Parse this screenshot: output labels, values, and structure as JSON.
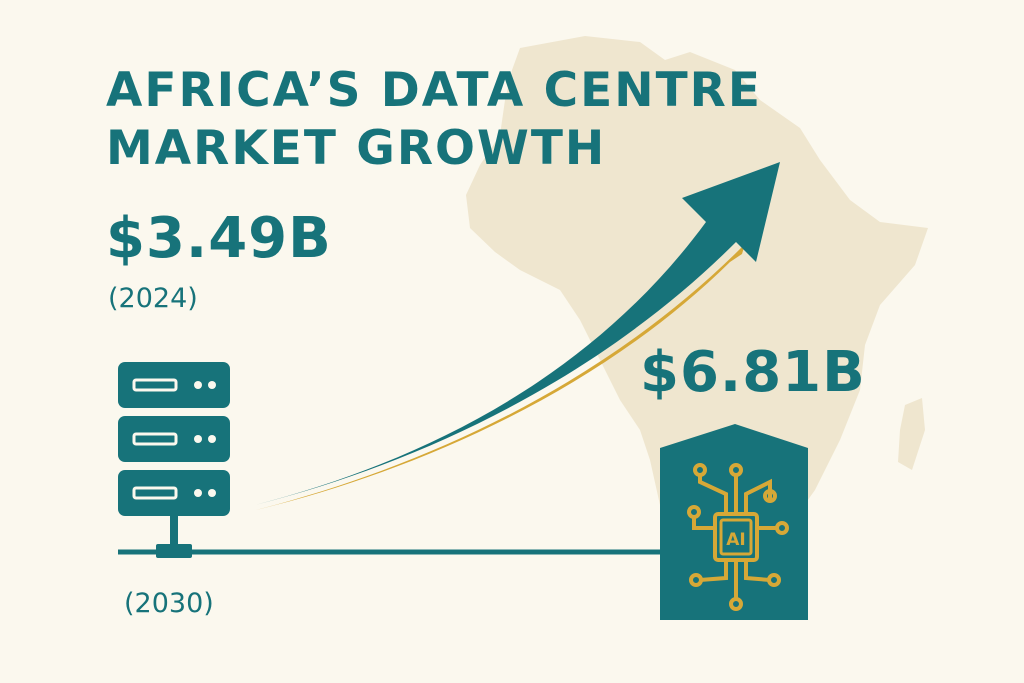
{
  "title": {
    "line1": "AFRICA’S DATA CENTRE",
    "line2": "MARKET GROWTH"
  },
  "start": {
    "value": "$3.49B",
    "year": "(2024)"
  },
  "end": {
    "value": "$6.81B",
    "year": "(2030)"
  },
  "chip_label": "AI",
  "icons": {
    "map": "africa-map-icon",
    "server": "server-rack-icon",
    "arrow": "growth-arrow-icon",
    "chip": "ai-chip-icon"
  },
  "colors": {
    "background": "#fbf8ee",
    "teal": "#17737a",
    "gold": "#d6a837",
    "map": "#efe6cf"
  }
}
